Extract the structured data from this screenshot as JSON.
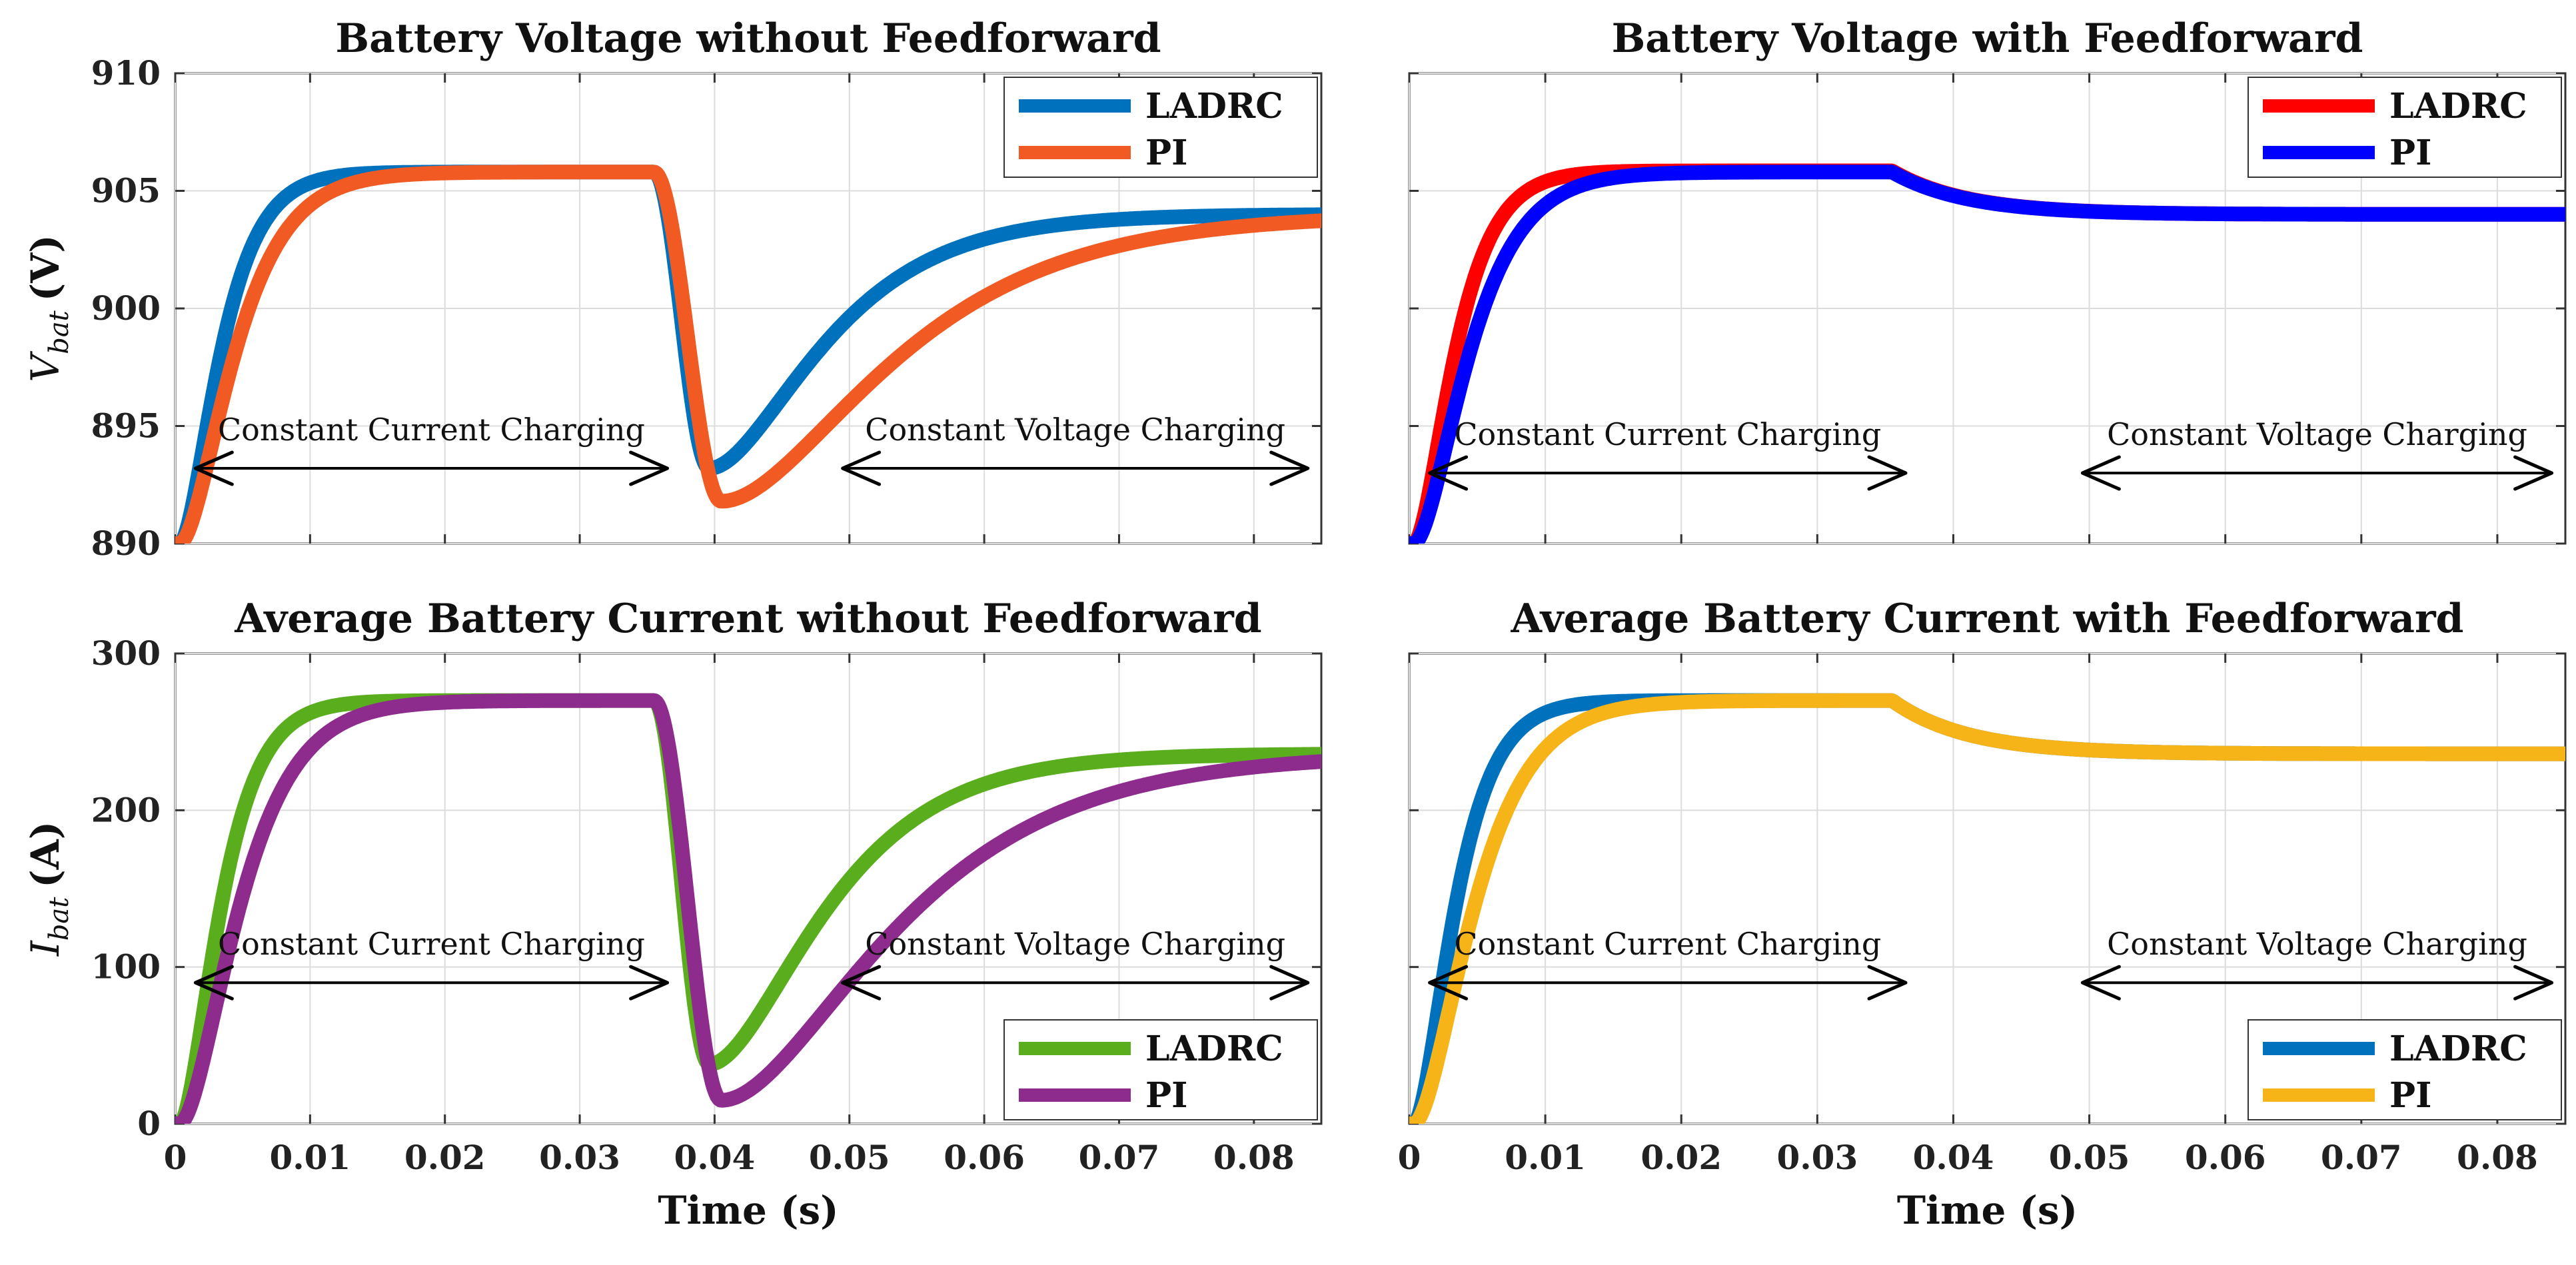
{
  "chart_data": [
    {
      "type": "line",
      "title": "Battery Voltage without Feedforward",
      "xlabel": "",
      "ylabel": "V_bat (V)",
      "ylabel_parts": {
        "main": "V",
        "sub": "bat",
        "unit": "(V)"
      },
      "xlim": [
        0,
        0.085
      ],
      "ylim": [
        890,
        910
      ],
      "xticks": [
        0,
        0.01,
        0.02,
        0.03,
        0.04,
        0.05,
        0.06,
        0.07,
        0.08
      ],
      "yticks": [
        890,
        895,
        900,
        905,
        910
      ],
      "ytick_labels": [
        "890",
        "895",
        "900",
        "905",
        "910"
      ],
      "show_xtick_labels": false,
      "show_ytick_labels": true,
      "legend_position": "top-right",
      "series": [
        {
          "name": "LADRC",
          "color": "#0072BD",
          "model": {
            "kind": "voltage",
            "y0": 890,
            "a": 905.8,
            "b": 904,
            "rise": 0.0018,
            "dipMin": 893.2,
            "dipCenter": 0.0396,
            "recover": 0.0052,
            "ff": false
          }
        },
        {
          "name": "PI",
          "color": "#F15A22",
          "model": {
            "kind": "voltage",
            "y0": 890,
            "a": 905.8,
            "b": 904,
            "rise": 0.0024,
            "dipMin": 891.8,
            "dipCenter": 0.0405,
            "recover": 0.0078,
            "ff": false
          }
        }
      ],
      "annotations": [
        {
          "text": "Constant Current Charging",
          "x_from": 0.0015,
          "x_to": 0.0365,
          "y": 893.2
        },
        {
          "text": "Constant Voltage Charging",
          "x_from": 0.0495,
          "x_to": 0.084,
          "y": 893.2
        }
      ]
    },
    {
      "type": "line",
      "title": "Battery Voltage with Feedforward",
      "xlabel": "",
      "ylabel": "",
      "xlim": [
        0,
        0.085
      ],
      "ylim": [
        890,
        910
      ],
      "xticks": [
        0,
        0.01,
        0.02,
        0.03,
        0.04,
        0.05,
        0.06,
        0.07,
        0.08
      ],
      "yticks": [
        890,
        895,
        900,
        905,
        910
      ],
      "show_xtick_labels": false,
      "show_ytick_labels": false,
      "legend_position": "top-right",
      "series": [
        {
          "name": "LADRC",
          "color": "#FF0000",
          "model": {
            "kind": "voltage",
            "y0": 890,
            "a": 905.85,
            "b": 904,
            "rise": 0.0018,
            "ff": true
          }
        },
        {
          "name": "PI",
          "color": "#0000FF",
          "model": {
            "kind": "voltage",
            "y0": 890,
            "a": 905.8,
            "b": 904,
            "rise": 0.0024,
            "ff": true
          }
        }
      ],
      "annotations": [
        {
          "text": "Constant Current Charging",
          "x_from": 0.0015,
          "x_to": 0.0365,
          "y": 893.0
        },
        {
          "text": "Constant Voltage Charging",
          "x_from": 0.0495,
          "x_to": 0.084,
          "y": 893.0
        }
      ]
    },
    {
      "type": "line",
      "title": "Average Battery Current without Feedforward",
      "xlabel": "Time (s)",
      "ylabel": "I_bat (A)",
      "ylabel_parts": {
        "main": "I",
        "sub": "bat",
        "unit": "(A)"
      },
      "xlim": [
        0,
        0.085
      ],
      "ylim": [
        0,
        300
      ],
      "xticks": [
        0,
        0.01,
        0.02,
        0.03,
        0.04,
        0.05,
        0.06,
        0.07,
        0.08
      ],
      "xtick_labels": [
        "0",
        "0.01",
        "0.02",
        "0.03",
        "0.04",
        "0.05",
        "0.06",
        "0.07",
        "0.08"
      ],
      "yticks": [
        0,
        100,
        200,
        300
      ],
      "ytick_labels": [
        "0",
        "100",
        "200",
        "300"
      ],
      "show_xtick_labels": true,
      "show_ytick_labels": true,
      "legend_position": "bottom-right",
      "series": [
        {
          "name": "LADRC",
          "color": "#5AAE1E",
          "model": {
            "kind": "current",
            "y0": 0,
            "a": 270,
            "b": 236,
            "rise": 0.0018,
            "dipMin": 38,
            "dipCenter": 0.0396,
            "recover": 0.0052,
            "ff": false
          }
        },
        {
          "name": "PI",
          "color": "#8E2C8E",
          "model": {
            "kind": "current",
            "y0": 0,
            "a": 270,
            "b": 236,
            "rise": 0.0026,
            "dipMin": 15,
            "dipCenter": 0.0405,
            "recover": 0.0078,
            "ff": false
          }
        }
      ],
      "annotations": [
        {
          "text": "Constant Current Charging",
          "x_from": 0.0015,
          "x_to": 0.0365,
          "y": 90
        },
        {
          "text": "Constant Voltage Charging",
          "x_from": 0.0495,
          "x_to": 0.084,
          "y": 90
        }
      ]
    },
    {
      "type": "line",
      "title": "Average Battery Current with Feedforward",
      "xlabel": "Time (s)",
      "ylabel": "",
      "xlim": [
        0,
        0.085
      ],
      "ylim": [
        0,
        300
      ],
      "xticks": [
        0,
        0.01,
        0.02,
        0.03,
        0.04,
        0.05,
        0.06,
        0.07,
        0.08
      ],
      "xtick_labels": [
        "0",
        "0.01",
        "0.02",
        "0.03",
        "0.04",
        "0.05",
        "0.06",
        "0.07",
        "0.08"
      ],
      "yticks": [
        0,
        100,
        200,
        300
      ],
      "show_xtick_labels": true,
      "show_ytick_labels": false,
      "legend_position": "bottom-right",
      "series": [
        {
          "name": "LADRC",
          "color": "#0072BD",
          "model": {
            "kind": "current",
            "y0": 0,
            "a": 270,
            "b": 236,
            "rise": 0.0018,
            "ff": true
          }
        },
        {
          "name": "PI",
          "color": "#F7B418",
          "model": {
            "kind": "current",
            "y0": 0,
            "a": 270,
            "b": 236,
            "rise": 0.0026,
            "ff": true
          }
        }
      ],
      "annotations": [
        {
          "text": "Constant Current Charging",
          "x_from": 0.0015,
          "x_to": 0.0365,
          "y": 90
        },
        {
          "text": "Constant Voltage Charging",
          "x_from": 0.0495,
          "x_to": 0.084,
          "y": 90
        }
      ]
    }
  ]
}
